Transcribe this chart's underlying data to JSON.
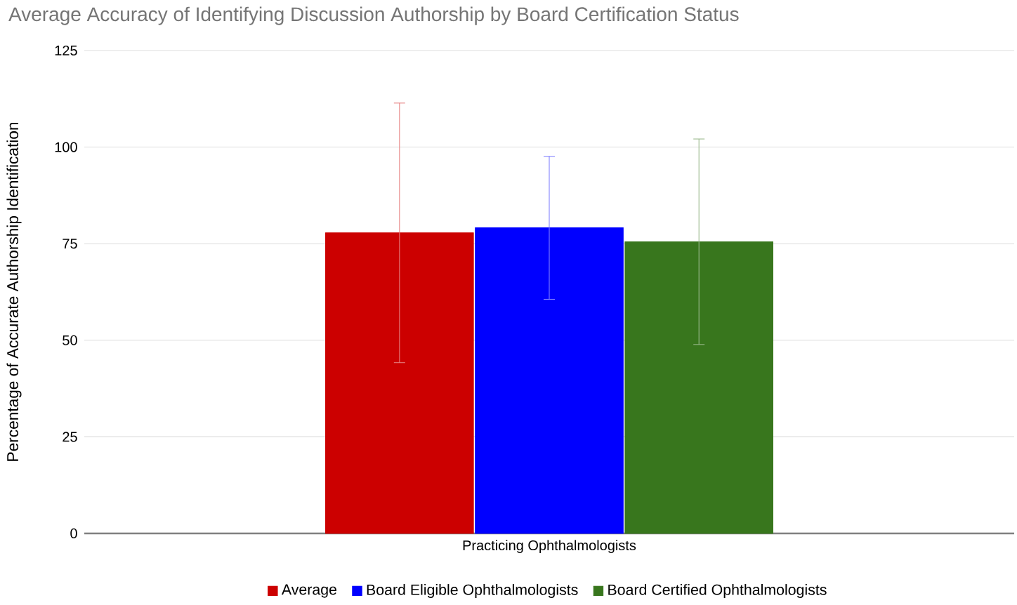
{
  "chart_data": {
    "type": "bar",
    "title": "Average Accuracy of Identifying Discussion Authorship by Board Certification Status",
    "ylabel": "Percentage of Accurate Authorship Identification",
    "categories": [
      "Practicing Ophthalmologists"
    ],
    "series": [
      {
        "name": "Average",
        "color": "#cc0000",
        "values": [
          77.8
        ],
        "errors": [
          [
            44.2,
            111.4
          ]
        ]
      },
      {
        "name": "Board Eligible Ophthalmologists",
        "color": "#0000ff",
        "values": [
          79.1
        ],
        "errors": [
          [
            60.6,
            97.6
          ]
        ]
      },
      {
        "name": "Board Certified Ophthalmologists",
        "color": "#38761d",
        "values": [
          75.5
        ],
        "errors": [
          [
            48.9,
            102.1
          ]
        ]
      }
    ],
    "ylim": [
      0,
      125
    ],
    "yticks": [
      0,
      25,
      50,
      75,
      100,
      125
    ],
    "grid": "y",
    "legend": "bottom"
  }
}
